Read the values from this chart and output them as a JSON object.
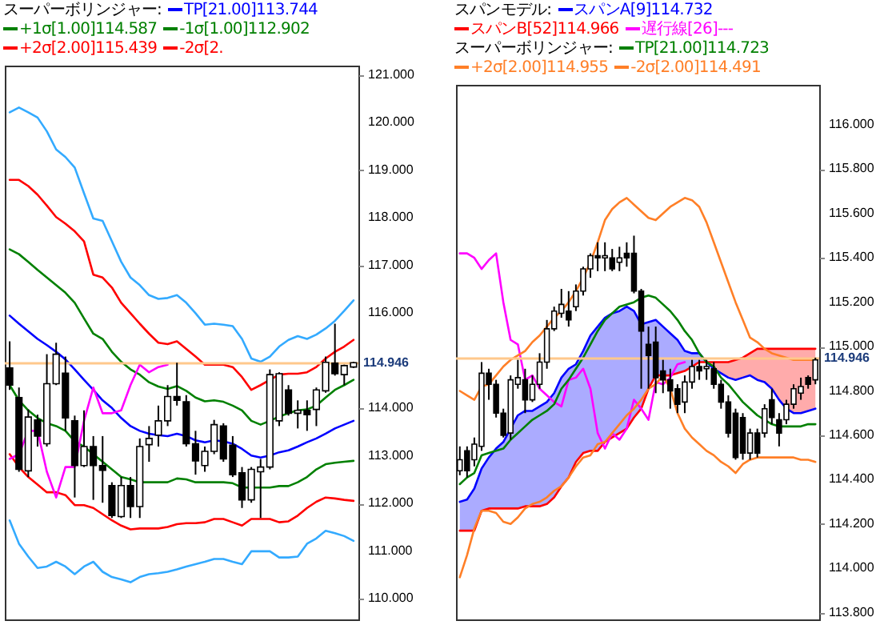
{
  "chart_data": [
    {
      "type": "candlestick",
      "legend": "top",
      "legend_title": "スーパーボリンジャー:",
      "tick_labels": "y",
      "categories": [
        null,
        null,
        null,
        null,
        null,
        null,
        null,
        null,
        null,
        null,
        null,
        null,
        null,
        null,
        null,
        null,
        null,
        null,
        null,
        null,
        null,
        null,
        null,
        null,
        null,
        null,
        null,
        null,
        null,
        null,
        null,
        null,
        null,
        null,
        null,
        null,
        null,
        null
      ],
      "ohlc": [
        [
          114.85,
          115.41,
          114.39,
          114.49
        ],
        [
          114.23,
          114.44,
          112.67,
          112.72
        ],
        [
          112.69,
          113.98,
          112.56,
          113.82
        ],
        [
          113.76,
          113.87,
          113.2,
          113.42
        ],
        [
          113.26,
          115.14,
          113.2,
          114.52
        ],
        [
          114.52,
          115.38,
          114.49,
          115.14
        ],
        [
          114.74,
          115.09,
          113.53,
          113.8
        ],
        [
          113.74,
          113.85,
          112.13,
          112.8
        ],
        [
          112.8,
          113.96,
          112.77,
          113.2
        ],
        [
          113.2,
          113.42,
          112.08,
          112.8
        ],
        [
          112.8,
          113.42,
          112.02,
          112.7
        ],
        [
          112.38,
          112.45,
          111.7,
          111.75
        ],
        [
          111.73,
          112.56,
          111.7,
          112.38
        ],
        [
          112.38,
          112.56,
          111.7,
          111.94
        ],
        [
          111.94,
          113.37,
          111.7,
          113.2
        ],
        [
          113.24,
          113.63,
          112.88,
          113.37
        ],
        [
          113.44,
          114.06,
          113.2,
          113.74
        ],
        [
          113.74,
          114.49,
          113.63,
          114.25
        ],
        [
          114.25,
          114.96,
          114.06,
          114.17
        ],
        [
          114.14,
          114.28,
          113.2,
          113.26
        ],
        [
          113.26,
          113.53,
          112.61,
          112.9
        ],
        [
          112.8,
          113.2,
          112.67,
          113.1
        ],
        [
          113.1,
          113.76,
          113.04,
          113.66
        ],
        [
          113.63,
          113.69,
          112.88,
          112.94
        ],
        [
          113.23,
          113.42,
          112.56,
          112.61
        ],
        [
          112.65,
          112.77,
          111.91,
          112.08
        ],
        [
          112.08,
          112.77,
          112.02,
          112.72
        ],
        [
          112.67,
          112.94,
          111.7,
          112.77
        ],
        [
          112.77,
          114.82,
          112.72,
          114.71
        ],
        [
          113.74,
          114.76,
          113.63,
          114.73
        ],
        [
          114.39,
          114.49,
          113.85,
          113.9
        ],
        [
          113.9,
          114.17,
          113.58,
          113.96
        ],
        [
          113.96,
          114.17,
          113.53,
          113.87
        ],
        [
          113.98,
          114.44,
          113.63,
          114.39
        ],
        [
          114.37,
          115.09,
          114.33,
          114.97
        ],
        [
          114.95,
          115.78,
          114.69,
          114.73
        ],
        [
          114.71,
          114.92,
          114.49,
          114.9
        ],
        [
          114.87,
          114.98,
          114.85,
          114.96
        ]
      ],
      "series": [
        {
          "type": "line",
          "name": "TP[21.00]113.744",
          "color": "#0000ff",
          "values": [
            115.95,
            115.78,
            115.62,
            115.46,
            115.33,
            115.19,
            115.03,
            114.82,
            114.6,
            114.39,
            114.17,
            114.01,
            113.8,
            113.63,
            113.53,
            113.47,
            113.44,
            113.42,
            113.47,
            113.42,
            113.33,
            113.29,
            113.33,
            113.31,
            113.26,
            113.15,
            113.01,
            112.97,
            113.01,
            113.08,
            113.12,
            113.2,
            113.29,
            113.37,
            113.47,
            113.58,
            113.66,
            113.74
          ]
        },
        {
          "type": "line",
          "name": "+1σ[1.00]114.587",
          "color": "#008000",
          "values": [
            117.34,
            117.24,
            117.08,
            116.91,
            116.75,
            116.59,
            116.43,
            116.22,
            115.89,
            115.57,
            115.46,
            115.19,
            114.98,
            114.82,
            114.71,
            114.55,
            114.46,
            114.41,
            114.47,
            114.37,
            114.23,
            114.15,
            114.17,
            114.14,
            114.06,
            113.96,
            113.74,
            113.66,
            113.74,
            113.83,
            113.9,
            113.96,
            113.98,
            114.06,
            114.23,
            114.39,
            114.49,
            114.6
          ]
        },
        {
          "type": "line",
          "name": "-1σ[1.00]112.902",
          "color": "#008000",
          "values": [
            114.49,
            114.17,
            113.96,
            113.8,
            113.69,
            113.63,
            113.53,
            113.31,
            113.2,
            113.04,
            112.88,
            112.72,
            112.56,
            112.51,
            112.45,
            112.45,
            112.45,
            112.45,
            112.53,
            112.51,
            112.45,
            112.45,
            112.45,
            112.45,
            112.43,
            112.34,
            112.34,
            112.34,
            112.34,
            112.37,
            112.37,
            112.45,
            112.56,
            112.72,
            112.83,
            112.86,
            112.88,
            112.9
          ]
        },
        {
          "type": "line",
          "name": "+2σ[2.00]115.439",
          "color": "#ff0000",
          "values": [
            118.8,
            118.8,
            118.67,
            118.49,
            118.26,
            118.02,
            117.88,
            117.72,
            117.51,
            116.81,
            116.75,
            116.54,
            116.22,
            116.0,
            115.78,
            115.57,
            115.38,
            115.35,
            115.41,
            115.25,
            115.09,
            114.92,
            114.92,
            114.92,
            114.87,
            114.66,
            114.39,
            114.49,
            114.6,
            114.71,
            114.73,
            114.73,
            114.76,
            114.87,
            115.05,
            115.19,
            115.3,
            115.44
          ]
        },
        {
          "type": "line",
          "name": "-2σ[2.",
          "color": "#ff0000",
          "values": [
            113.04,
            112.77,
            112.56,
            112.4,
            112.24,
            112.24,
            112.18,
            111.97,
            111.97,
            111.91,
            111.78,
            111.65,
            111.54,
            111.46,
            111.48,
            111.48,
            111.48,
            111.51,
            111.57,
            111.59,
            111.59,
            111.61,
            111.68,
            111.68,
            111.61,
            111.54,
            111.68,
            111.68,
            111.68,
            111.61,
            111.63,
            111.75,
            111.91,
            112.04,
            112.13,
            112.11,
            112.08,
            112.06
          ]
        },
        {
          "type": "line",
          "color": "#33aaff",
          "values": [
            120.22,
            120.32,
            120.22,
            120.11,
            119.82,
            119.44,
            119.28,
            119.06,
            118.52,
            117.99,
            117.94,
            117.51,
            117.08,
            116.75,
            116.59,
            116.38,
            116.3,
            116.32,
            116.38,
            116.22,
            116.0,
            115.76,
            115.78,
            115.76,
            115.73,
            115.46,
            115.05,
            114.98,
            115.09,
            115.3,
            115.44,
            115.52,
            115.46,
            115.55,
            115.68,
            115.84,
            116.05,
            116.27
          ]
        },
        {
          "type": "line",
          "color": "#33aaff",
          "values": [
            111.65,
            111.16,
            110.89,
            110.65,
            110.68,
            110.78,
            110.68,
            110.52,
            110.68,
            110.78,
            110.57,
            110.46,
            110.41,
            110.35,
            110.46,
            110.52,
            110.54,
            110.57,
            110.62,
            110.68,
            110.73,
            110.78,
            110.84,
            110.84,
            110.78,
            110.73,
            111.0,
            111.0,
            111.0,
            110.87,
            110.87,
            110.89,
            111.16,
            111.27,
            111.43,
            111.38,
            111.32,
            111.22
          ]
        },
        {
          "type": "line",
          "color": "#ff00ff",
          "values": [
            112.94,
            113.04,
            113.53,
            113.53,
            112.67,
            112.13,
            112.77,
            112.77,
            113.74,
            114.44,
            113.9,
            113.9,
            113.96,
            114.49,
            114.92,
            114.76,
            114.87,
            114.92,
            null,
            null,
            null,
            null,
            null,
            null,
            null,
            null,
            null,
            null,
            null,
            null,
            null,
            null,
            null,
            null,
            null,
            null,
            null,
            null
          ]
        }
      ],
      "ylim": [
        109.57,
        121.2
      ],
      "yticks": [
        {
          "value": 110,
          "label": "110.000"
        },
        {
          "value": 111,
          "label": "111.000"
        },
        {
          "value": 112,
          "label": "112.000"
        },
        {
          "value": 113,
          "label": "113.000"
        },
        {
          "value": 114,
          "label": "114.000"
        },
        {
          "value": 116,
          "label": "116.000"
        },
        {
          "value": 117,
          "label": "117.000"
        },
        {
          "value": 118,
          "label": "118.000"
        },
        {
          "value": 119,
          "label": "119.000"
        },
        {
          "value": 120,
          "label": "120.000"
        },
        {
          "value": 121,
          "label": "121.000"
        }
      ],
      "ref_lines": [
        {
          "axis": "y",
          "value": 114.946,
          "label": "114.946",
          "color": "#ffc88c"
        }
      ]
    },
    {
      "type": "candlestick",
      "legend": "top",
      "legend_title": [
        "スパンモデル:",
        "スーパーボリンジャー:"
      ],
      "tick_labels": "y",
      "categories": [
        null,
        null,
        null,
        null,
        null,
        null,
        null,
        null,
        null,
        null,
        null,
        null,
        null,
        null,
        null,
        null,
        null,
        null,
        null,
        null,
        null,
        null,
        null,
        null,
        null,
        null,
        null,
        null,
        null,
        null,
        null,
        null,
        null,
        null,
        null,
        null,
        null,
        null,
        null,
        null,
        null,
        null,
        null,
        null,
        null,
        null,
        null,
        null,
        null,
        null
      ],
      "ohlc": [
        [
          114.44,
          114.55,
          114.42,
          114.49
        ],
        [
          114.53,
          114.55,
          114.41,
          114.44
        ],
        [
          114.49,
          114.59,
          114.46,
          114.56
        ],
        [
          114.55,
          114.93,
          114.53,
          114.88
        ],
        [
          114.88,
          114.9,
          114.76,
          114.83
        ],
        [
          114.83,
          114.85,
          114.68,
          114.7
        ],
        [
          114.7,
          114.72,
          114.59,
          114.6
        ],
        [
          114.61,
          114.87,
          114.58,
          114.85
        ],
        [
          114.83,
          114.94,
          114.81,
          114.86
        ],
        [
          114.85,
          114.9,
          114.7,
          114.76
        ],
        [
          114.76,
          114.87,
          114.75,
          114.83
        ],
        [
          114.83,
          114.97,
          114.81,
          114.93
        ],
        [
          114.93,
          115.12,
          114.9,
          115.08
        ],
        [
          115.08,
          115.18,
          115.07,
          115.16
        ],
        [
          115.15,
          115.26,
          115.13,
          115.19
        ],
        [
          115.16,
          115.25,
          115.09,
          115.12
        ],
        [
          115.18,
          115.28,
          115.16,
          115.25
        ],
        [
          115.25,
          115.36,
          115.23,
          115.35
        ],
        [
          115.35,
          115.42,
          115.31,
          115.41
        ],
        [
          115.41,
          115.47,
          115.34,
          115.4
        ],
        [
          115.4,
          115.47,
          115.34,
          115.41
        ],
        [
          115.4,
          115.44,
          115.34,
          115.35
        ],
        [
          115.38,
          115.45,
          115.34,
          115.4
        ],
        [
          115.42,
          115.47,
          115.36,
          115.4
        ],
        [
          115.42,
          115.5,
          115.24,
          115.25
        ],
        [
          115.25,
          115.26,
          114.81,
          115.07
        ],
        [
          115.01,
          115.09,
          114.81,
          114.96
        ],
        [
          115.02,
          115.09,
          114.79,
          114.86
        ],
        [
          114.89,
          114.94,
          114.79,
          114.85
        ],
        [
          114.85,
          114.9,
          114.72,
          114.8
        ],
        [
          114.81,
          114.83,
          114.7,
          114.74
        ],
        [
          114.75,
          114.87,
          114.7,
          114.84
        ],
        [
          114.84,
          114.94,
          114.81,
          114.91
        ],
        [
          114.91,
          114.94,
          114.85,
          114.89
        ],
        [
          114.9,
          114.94,
          114.85,
          114.91
        ],
        [
          114.9,
          114.93,
          114.81,
          114.83
        ],
        [
          114.83,
          114.85,
          114.72,
          114.75
        ],
        [
          114.75,
          114.78,
          114.59,
          114.61
        ],
        [
          114.7,
          114.72,
          114.49,
          114.5
        ],
        [
          114.68,
          114.7,
          114.49,
          114.52
        ],
        [
          114.52,
          114.63,
          114.49,
          114.61
        ],
        [
          114.61,
          114.63,
          114.5,
          114.52
        ],
        [
          114.61,
          114.74,
          114.59,
          114.72
        ],
        [
          114.76,
          114.81,
          114.65,
          114.68
        ],
        [
          114.67,
          114.7,
          114.55,
          114.61
        ],
        [
          114.67,
          114.76,
          114.65,
          114.74
        ],
        [
          114.74,
          114.83,
          114.72,
          114.81
        ],
        [
          114.79,
          114.86,
          114.76,
          114.82
        ],
        [
          114.86,
          114.87,
          114.81,
          114.83
        ],
        [
          114.85,
          114.95,
          114.83,
          114.94
        ]
      ],
      "series": [
        {
          "type": "line",
          "name": "スパンA[9]114.732",
          "color": "#0000ff",
          "values": [
            114.3,
            114.31,
            114.36,
            114.45,
            114.5,
            114.54,
            114.57,
            114.63,
            114.69,
            114.71,
            114.71,
            114.73,
            114.75,
            114.79,
            114.86,
            114.9,
            114.92,
            114.98,
            115.05,
            115.09,
            115.13,
            115.15,
            115.16,
            115.18,
            115.16,
            115.1,
            115.11,
            115.12,
            115.09,
            115.06,
            115.03,
            114.98,
            114.97,
            114.97,
            114.93,
            114.9,
            114.88,
            114.86,
            114.85,
            114.86,
            114.87,
            114.85,
            114.84,
            114.81,
            114.76,
            114.72,
            114.7,
            114.7,
            114.71,
            114.72
          ],
          "lower": [
            114.17,
            114.17,
            114.17,
            114.26,
            114.27,
            114.27,
            114.27,
            114.27,
            114.27,
            114.28,
            114.28,
            114.28,
            114.29,
            114.32,
            114.37,
            114.41,
            114.48,
            114.52,
            114.53,
            114.53,
            114.57,
            114.59,
            114.61,
            114.63,
            114.68,
            114.72,
            114.81,
            114.87,
            114.87,
            114.87,
            114.88,
            114.89,
            114.91,
            114.93,
            114.93,
            null,
            null,
            null,
            null,
            null,
            null,
            null,
            null,
            null,
            null,
            null,
            null,
            null,
            null,
            null
          ],
          "upper": [
            114.3,
            114.31,
            114.36,
            114.45,
            114.5,
            114.54,
            114.57,
            114.63,
            114.69,
            114.71,
            114.71,
            114.73,
            114.75,
            114.79,
            114.86,
            114.9,
            114.92,
            114.98,
            115.05,
            115.09,
            115.13,
            115.15,
            115.16,
            115.18,
            115.16,
            115.1,
            115.11,
            115.12,
            115.09,
            115.06,
            115.03,
            114.98,
            114.97,
            114.97,
            114.93,
            null,
            null,
            null,
            null,
            null,
            null,
            null,
            null,
            null,
            null,
            null,
            null,
            null,
            null,
            null
          ]
        },
        {
          "type": "line",
          "name": "スパンB[52]114.966",
          "color": "#ff0000",
          "values": [
            114.17,
            114.17,
            114.17,
            114.26,
            114.27,
            114.27,
            114.27,
            114.27,
            114.27,
            114.28,
            114.28,
            114.28,
            114.29,
            114.32,
            114.37,
            114.41,
            114.48,
            114.52,
            114.53,
            114.53,
            114.57,
            114.59,
            114.61,
            114.63,
            114.68,
            114.72,
            114.81,
            114.87,
            114.87,
            114.87,
            114.88,
            114.89,
            114.91,
            114.93,
            114.93,
            114.93,
            114.93,
            114.93,
            114.94,
            114.95,
            114.97,
            114.99,
            114.99,
            114.99,
            114.99,
            114.99,
            114.99,
            114.99,
            114.99,
            114.99
          ],
          "lower": [
            null,
            null,
            null,
            null,
            null,
            null,
            null,
            null,
            null,
            null,
            null,
            null,
            null,
            null,
            null,
            null,
            null,
            null,
            null,
            null,
            null,
            null,
            null,
            null,
            null,
            null,
            null,
            null,
            null,
            null,
            null,
            null,
            null,
            null,
            114.93,
            114.9,
            114.88,
            114.86,
            114.85,
            114.86,
            114.87,
            114.85,
            114.84,
            114.81,
            114.76,
            114.72,
            114.7,
            114.7,
            114.71,
            114.72
          ],
          "upper": [
            null,
            null,
            null,
            null,
            null,
            null,
            null,
            null,
            null,
            null,
            null,
            null,
            null,
            null,
            null,
            null,
            null,
            null,
            null,
            null,
            null,
            null,
            null,
            null,
            null,
            null,
            null,
            null,
            null,
            null,
            null,
            null,
            null,
            null,
            114.93,
            114.93,
            114.93,
            114.93,
            114.94,
            114.95,
            114.97,
            114.99,
            114.99,
            114.99,
            114.99,
            114.99,
            114.99,
            114.99,
            114.99,
            114.99
          ]
        },
        {
          "type": "line",
          "name": "遅行線[26]---",
          "color": "#ff00ff",
          "values": [
            115.42,
            115.42,
            115.4,
            115.35,
            115.39,
            115.42,
            115.2,
            115.03,
            115.01,
            114.85,
            114.87,
            114.81,
            114.78,
            114.75,
            114.73,
            114.85,
            114.86,
            114.9,
            114.81,
            114.61,
            114.54,
            114.61,
            114.58,
            114.63,
            114.76,
            114.72,
            114.67,
            114.84,
            114.83,
            114.86,
            114.92,
            114.93,
            null,
            null,
            null,
            null,
            null,
            null,
            null,
            null,
            null,
            null,
            null,
            null,
            null,
            null,
            null,
            null,
            null,
            null
          ]
        },
        {
          "type": "line",
          "name": "TP[21.00]114.723",
          "color": "#008000",
          "values": [
            114.38,
            114.41,
            114.43,
            114.51,
            114.52,
            114.53,
            114.54,
            114.58,
            114.61,
            114.64,
            114.67,
            114.69,
            114.71,
            114.74,
            114.81,
            114.85,
            114.9,
            114.95,
            115.01,
            115.07,
            115.12,
            115.15,
            115.18,
            115.19,
            115.2,
            115.22,
            115.23,
            115.22,
            115.19,
            115.16,
            115.12,
            115.07,
            115.03,
            114.97,
            114.93,
            114.91,
            114.86,
            114.83,
            114.79,
            114.75,
            114.72,
            114.69,
            114.67,
            114.65,
            114.64,
            114.64,
            114.64,
            114.64,
            114.65,
            114.65
          ]
        },
        {
          "type": "line",
          "name": "+2σ[2.00]114.955",
          "color": "#ff7f27",
          "values": [
            114.8,
            114.78,
            114.76,
            114.82,
            114.83,
            114.87,
            114.91,
            114.94,
            114.96,
            114.98,
            115.02,
            115.05,
            115.09,
            115.13,
            115.16,
            115.2,
            115.25,
            115.31,
            115.38,
            115.47,
            115.57,
            115.62,
            115.65,
            115.67,
            115.64,
            115.61,
            115.58,
            115.57,
            115.6,
            115.63,
            115.65,
            115.67,
            115.66,
            115.63,
            115.56,
            115.47,
            115.38,
            115.29,
            115.2,
            115.12,
            115.04,
            115.02,
            114.99,
            114.97,
            114.96,
            114.95,
            114.94,
            114.94,
            114.94,
            114.94
          ]
        },
        {
          "type": "line",
          "name": "-2σ[2.00]114.491",
          "color": "#ff7f27",
          "values": [
            113.96,
            114.06,
            114.18,
            114.26,
            114.26,
            114.25,
            114.21,
            114.2,
            114.23,
            114.27,
            114.29,
            114.3,
            114.32,
            114.35,
            114.37,
            114.41,
            114.46,
            114.5,
            114.51,
            114.56,
            114.57,
            114.61,
            114.65,
            114.69,
            114.72,
            114.76,
            114.81,
            114.83,
            114.87,
            114.81,
            114.7,
            114.63,
            114.59,
            114.56,
            114.53,
            114.51,
            114.48,
            114.46,
            114.43,
            114.47,
            114.49,
            114.5,
            114.5,
            114.5,
            114.5,
            114.5,
            114.5,
            114.49,
            114.49,
            114.48
          ]
        }
      ],
      "ylim": [
        113.77,
        116.18
      ],
      "yticks": [
        {
          "value": 113.8,
          "label": "113.800"
        },
        {
          "value": 114,
          "label": "114.000"
        },
        {
          "value": 114.2,
          "label": "114.200"
        },
        {
          "value": 114.4,
          "label": "114.400"
        },
        {
          "value": 114.6,
          "label": "114.600"
        },
        {
          "value": 114.8,
          "label": "114.800"
        },
        {
          "value": 115,
          "label": "115.000"
        },
        {
          "value": 115.2,
          "label": "115.200"
        },
        {
          "value": 115.4,
          "label": "115.400"
        },
        {
          "value": 115.6,
          "label": "115.600"
        },
        {
          "value": 115.8,
          "label": "115.800"
        },
        {
          "value": 116,
          "label": "116.000"
        }
      ],
      "ref_lines": [
        {
          "axis": "y",
          "value": 114.946,
          "label": "114.946",
          "color": "#ffc88c"
        }
      ]
    }
  ]
}
